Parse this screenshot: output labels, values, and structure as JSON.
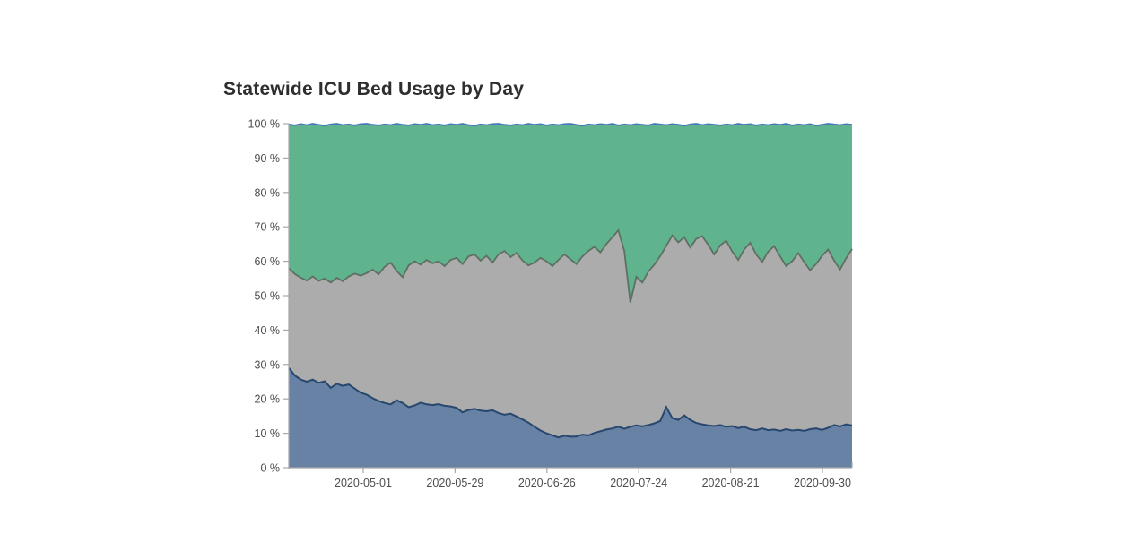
{
  "page": {
    "background": "#ffffff"
  },
  "chart_data": {
    "type": "area",
    "stacked": true,
    "title": "Statewide ICU Bed Usage by Day",
    "title_color": "#2e2e2e",
    "grid": false,
    "legend": "none",
    "ylim": [
      0,
      100
    ],
    "y_unit": "%",
    "y_tick_labels": [
      "0 %",
      "10 %",
      "20 %",
      "30 %",
      "40 %",
      "50 %",
      "60 %",
      "70 %",
      "80 %",
      "90 %",
      "100 %"
    ],
    "x_tick_labels": [
      "2020-05-01",
      "2020-05-29",
      "2020-06-26",
      "2020-07-24",
      "2020-08-21",
      "2020-09-30"
    ],
    "axis_color": "#a6a6a6",
    "tick_label_color": "#4d4d4d",
    "series": [
      {
        "name": "blue-bottom-area",
        "fill": "#6782a5",
        "stroke": "#27476e",
        "stack_top_pct": [
          29.0,
          26.8,
          25.6,
          25.0,
          25.6,
          24.7,
          25.1,
          23.2,
          24.4,
          23.8,
          24.2,
          23.0,
          21.8,
          21.2,
          20.2,
          19.4,
          18.8,
          18.4,
          19.6,
          18.8,
          17.6,
          18.1,
          18.9,
          18.4,
          18.2,
          18.5,
          18.0,
          17.8,
          17.4,
          16.1,
          16.8,
          17.1,
          16.6,
          16.4,
          16.7,
          15.9,
          15.4,
          15.7,
          14.9,
          14.0,
          13.1,
          11.9,
          10.8,
          10.0,
          9.4,
          8.8,
          9.3,
          9.0,
          9.1,
          9.6,
          9.4,
          10.1,
          10.6,
          11.1,
          11.4,
          11.9,
          11.3,
          11.9,
          12.3,
          12.0,
          12.4,
          12.9,
          13.6,
          17.6,
          14.4,
          13.9,
          15.2,
          13.9,
          13.0,
          12.6,
          12.3,
          12.1,
          12.4,
          11.9,
          12.1,
          11.5,
          11.9,
          11.2,
          10.9,
          11.4,
          10.9,
          11.1,
          10.7,
          11.2,
          10.8,
          11.0,
          10.7,
          11.2,
          11.4,
          11.0,
          11.6,
          12.4,
          12.0,
          12.6,
          12.3
        ]
      },
      {
        "name": "gray-middle-area",
        "fill": "#acacac",
        "stroke": "#5f6f63",
        "stack_top_pct": [
          58.0,
          56.3,
          55.2,
          54.4,
          55.6,
          54.3,
          55.0,
          53.8,
          55.2,
          54.2,
          55.6,
          56.4,
          55.8,
          56.6,
          57.6,
          56.2,
          58.4,
          59.6,
          57.2,
          55.4,
          58.8,
          60.0,
          59.0,
          60.4,
          59.4,
          60.0,
          58.6,
          60.4,
          61.0,
          59.2,
          61.4,
          62.0,
          60.2,
          61.6,
          59.6,
          62.0,
          63.0,
          61.2,
          62.4,
          60.2,
          58.8,
          59.6,
          61.0,
          60.0,
          58.6,
          60.4,
          62.0,
          60.6,
          59.2,
          61.4,
          63.0,
          64.2,
          62.6,
          65.0,
          67.0,
          69.0,
          63.0,
          48.0,
          55.5,
          53.8,
          57.0,
          59.0,
          61.5,
          64.5,
          67.5,
          65.5,
          67.0,
          64.0,
          66.5,
          67.3,
          64.8,
          62.0,
          64.6,
          66.0,
          62.8,
          60.4,
          63.4,
          65.4,
          62.0,
          59.8,
          62.8,
          64.4,
          61.4,
          58.6,
          60.0,
          62.4,
          59.8,
          57.4,
          59.2,
          61.6,
          63.4,
          60.2,
          57.6,
          60.8,
          63.6
        ]
      },
      {
        "name": "green-top-area",
        "fill": "#5fb48d",
        "stroke": "none"
      },
      {
        "name": "thin-top-line",
        "stroke": "#4678b9",
        "stack_top_pct": [
          99.8,
          99.5,
          99.9,
          99.6,
          100.0,
          99.7,
          99.4,
          99.8,
          100.0,
          99.6,
          99.8,
          99.5,
          99.9,
          100.0,
          99.7,
          99.5,
          99.8,
          99.6,
          100.0,
          99.7,
          99.5,
          99.9,
          99.7,
          100.0,
          99.6,
          99.8,
          99.5,
          99.9,
          99.7,
          100.0,
          99.6,
          99.4,
          99.8,
          99.6,
          99.9,
          100.0,
          99.7,
          99.5,
          99.8,
          99.6,
          100.0,
          99.7,
          99.9,
          99.5,
          99.8,
          99.6,
          99.9,
          100.0,
          99.7,
          99.4,
          99.8,
          99.6,
          99.9,
          99.7,
          100.0,
          99.5,
          99.8,
          99.6,
          99.9,
          99.7,
          99.5,
          100.0,
          99.8,
          99.6,
          99.9,
          99.7,
          99.4,
          99.8,
          100.0,
          99.6,
          99.9,
          99.7,
          99.5,
          99.8,
          99.6,
          100.0,
          99.7,
          99.9,
          99.5,
          99.8,
          99.6,
          99.9,
          99.7,
          100.0,
          99.5,
          99.8,
          99.6,
          99.9,
          99.4,
          99.7,
          100.0,
          99.8,
          99.6,
          99.9,
          99.7
        ]
      }
    ]
  }
}
